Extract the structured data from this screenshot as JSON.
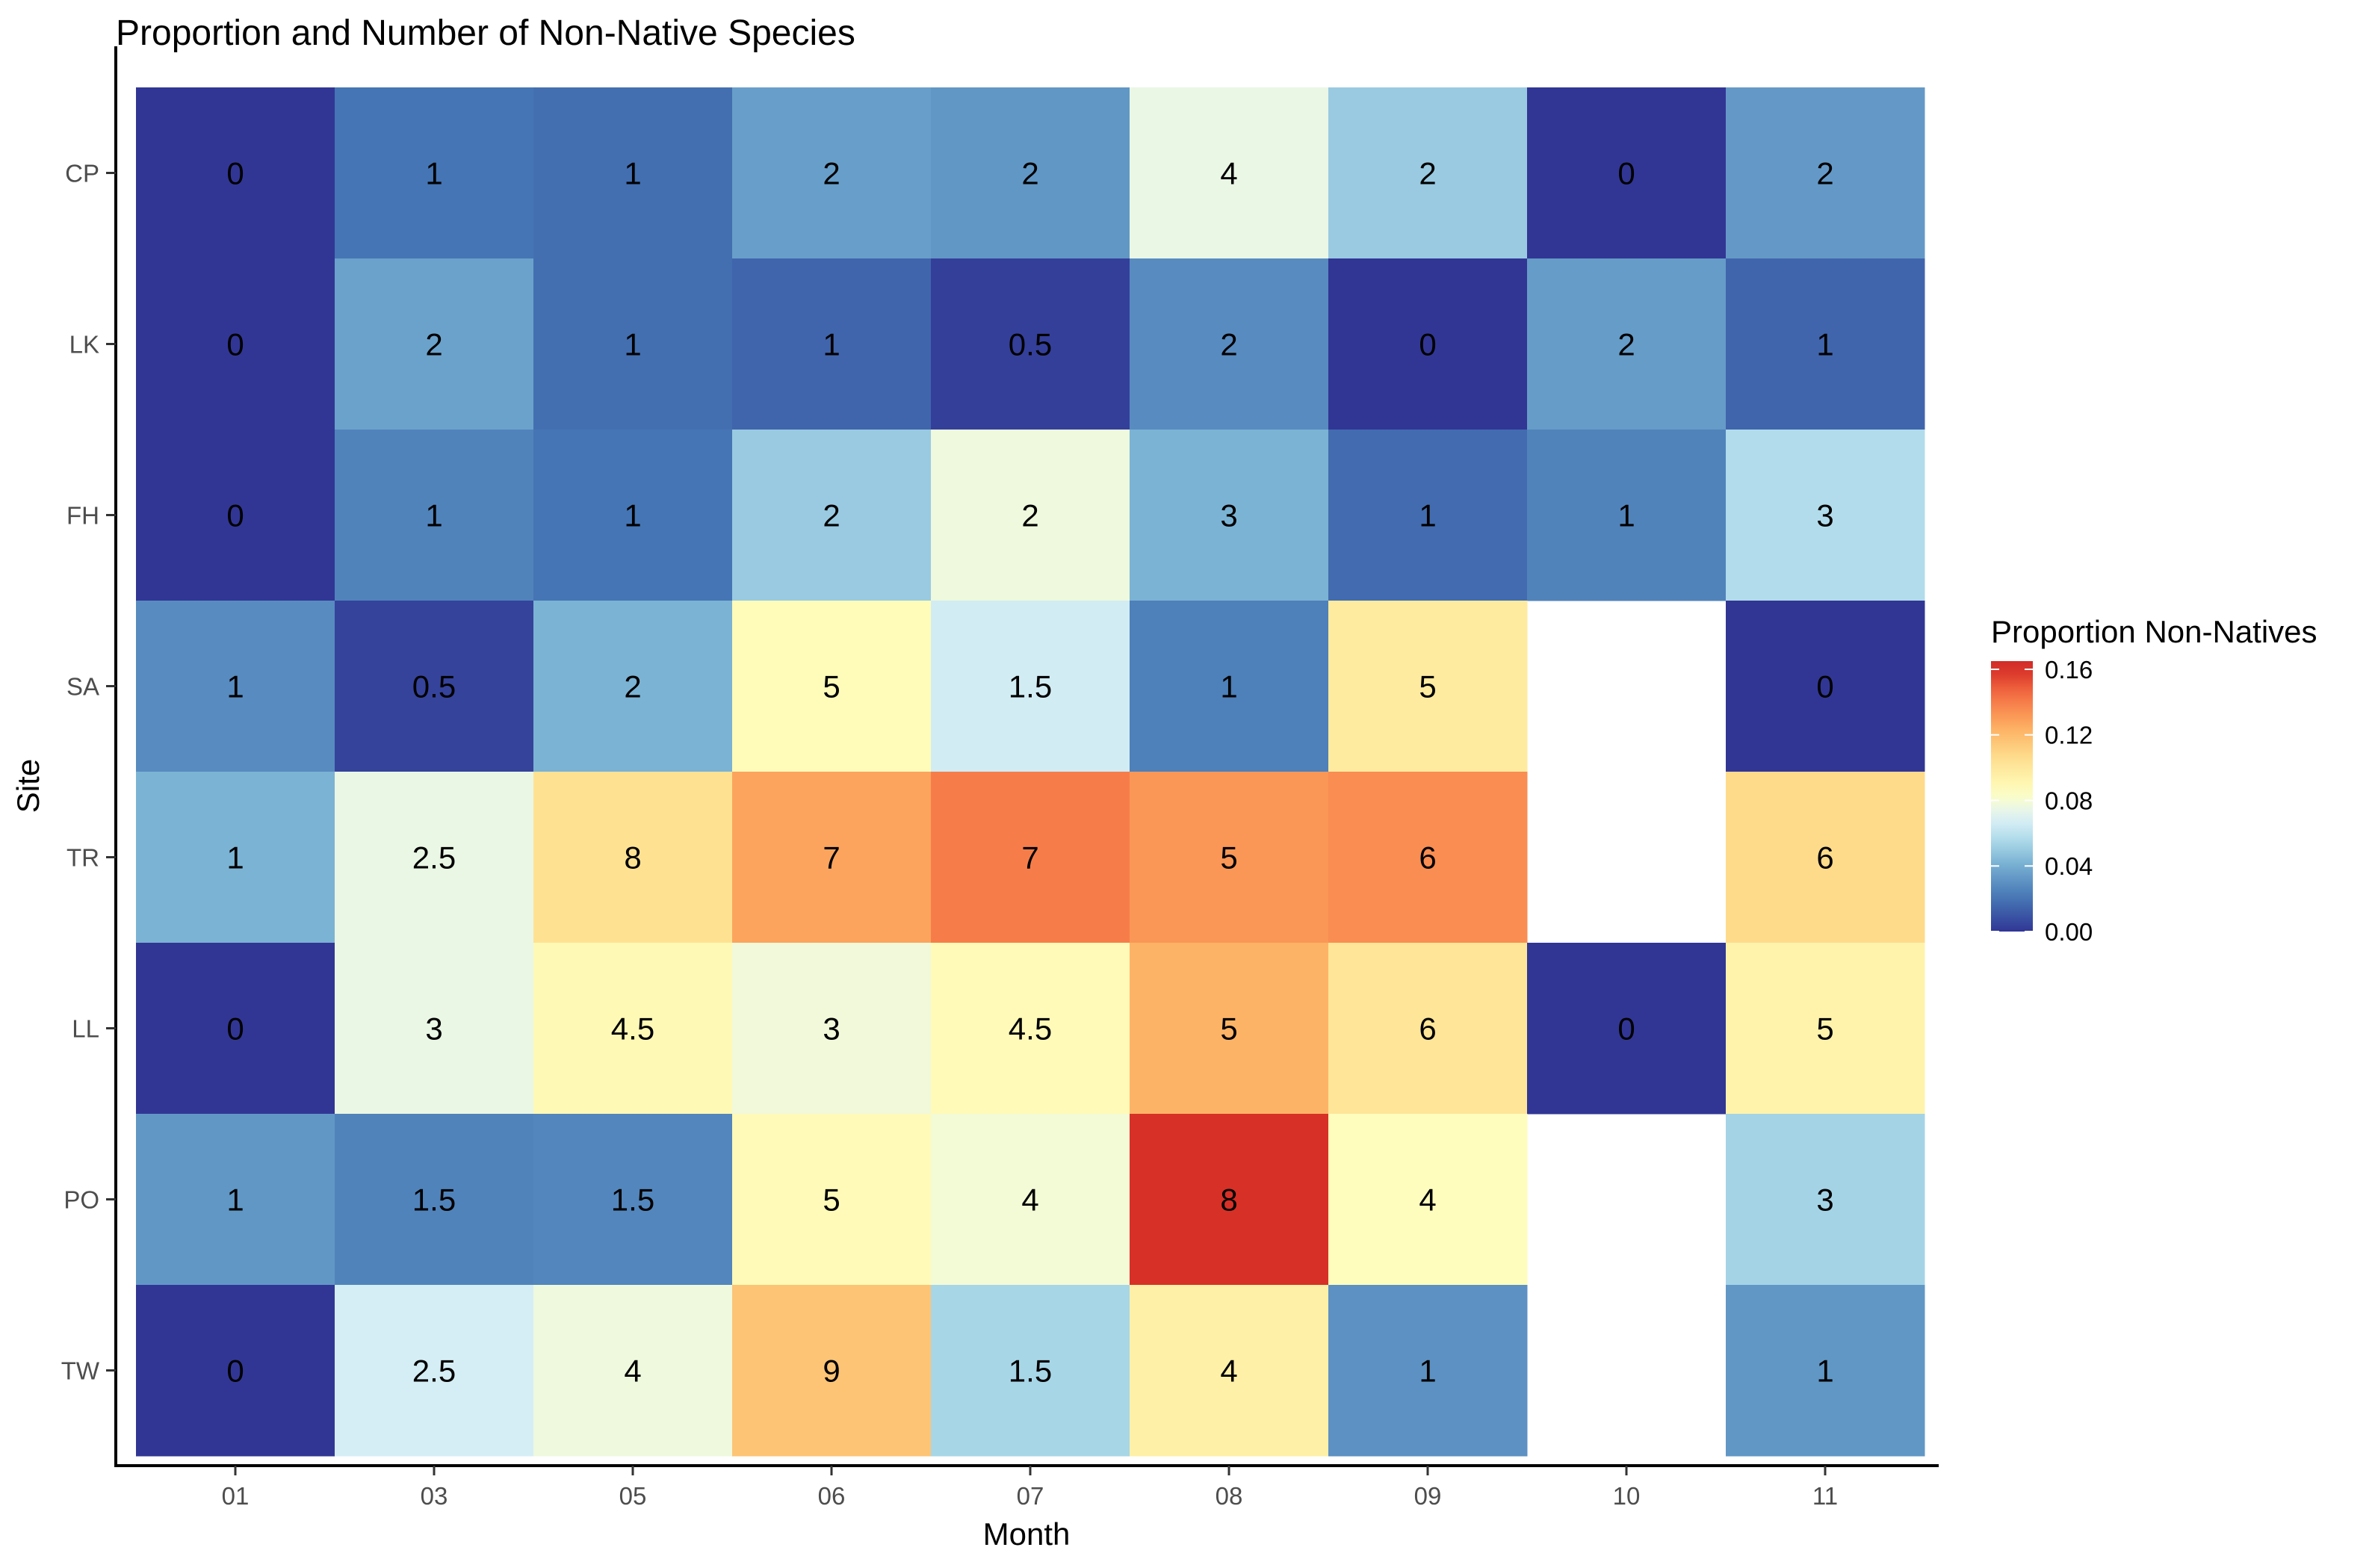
{
  "chart_data": {
    "type": "heatmap",
    "title": "Proportion and Number of Non-Native Species",
    "xlabel": "Month",
    "ylabel": "Site",
    "x_categories": [
      "01",
      "03",
      "05",
      "06",
      "07",
      "08",
      "09",
      "10",
      "11"
    ],
    "y_categories": [
      "CP",
      "LK",
      "FH",
      "SA",
      "TR",
      "LL",
      "PO",
      "TW"
    ],
    "legend": {
      "title": "Proportion Non-Natives",
      "ticks": [
        "0.16",
        "0.12",
        "0.08",
        "0.04",
        "0.00"
      ],
      "tick_values": [
        0.16,
        0.12,
        0.08,
        0.04,
        0.0
      ],
      "range": [
        0.0,
        0.165
      ],
      "placement": "right",
      "colors": [
        "#313695",
        "#4575b4",
        "#74add1",
        "#abd9e9",
        "#e0f3f8",
        "#ffffbf",
        "#fee090",
        "#fdae61",
        "#f46d43",
        "#d73027",
        "#a50026"
      ],
      "color_stops": [
        0.0,
        0.02,
        0.04,
        0.055,
        0.07,
        0.085,
        0.105,
        0.125,
        0.145,
        0.16,
        0.2
      ]
    },
    "grid": false,
    "cells": [
      {
        "site": "CP",
        "month": "01",
        "label": "0",
        "proportion": 0.0
      },
      {
        "site": "CP",
        "month": "03",
        "label": "1",
        "proportion": 0.02
      },
      {
        "site": "CP",
        "month": "05",
        "label": "1",
        "proportion": 0.018
      },
      {
        "site": "CP",
        "month": "06",
        "label": "2",
        "proportion": 0.035
      },
      {
        "site": "CP",
        "month": "07",
        "label": "2",
        "proportion": 0.032
      },
      {
        "site": "CP",
        "month": "08",
        "label": "4",
        "proportion": 0.075
      },
      {
        "site": "CP",
        "month": "09",
        "label": "2",
        "proportion": 0.05
      },
      {
        "site": "CP",
        "month": "10",
        "label": "0",
        "proportion": 0.0
      },
      {
        "site": "CP",
        "month": "11",
        "label": "2",
        "proportion": 0.033
      },
      {
        "site": "LK",
        "month": "01",
        "label": "0",
        "proportion": 0.0
      },
      {
        "site": "LK",
        "month": "03",
        "label": "2",
        "proportion": 0.036
      },
      {
        "site": "LK",
        "month": "05",
        "label": "1",
        "proportion": 0.018
      },
      {
        "site": "LK",
        "month": "06",
        "label": "1",
        "proportion": 0.015
      },
      {
        "site": "LK",
        "month": "07",
        "label": "0.5",
        "proportion": 0.003
      },
      {
        "site": "LK",
        "month": "08",
        "label": "2",
        "proportion": 0.028
      },
      {
        "site": "LK",
        "month": "09",
        "label": "0",
        "proportion": 0.0
      },
      {
        "site": "LK",
        "month": "10",
        "label": "2",
        "proportion": 0.034
      },
      {
        "site": "LK",
        "month": "11",
        "label": "1",
        "proportion": 0.015
      },
      {
        "site": "FH",
        "month": "01",
        "label": "0",
        "proportion": 0.0
      },
      {
        "site": "FH",
        "month": "03",
        "label": "1",
        "proportion": 0.025
      },
      {
        "site": "FH",
        "month": "05",
        "label": "1",
        "proportion": 0.02
      },
      {
        "site": "FH",
        "month": "06",
        "label": "2",
        "proportion": 0.05
      },
      {
        "site": "FH",
        "month": "07",
        "label": "2",
        "proportion": 0.077
      },
      {
        "site": "FH",
        "month": "08",
        "label": "3",
        "proportion": 0.042
      },
      {
        "site": "FH",
        "month": "09",
        "label": "1",
        "proportion": 0.017
      },
      {
        "site": "FH",
        "month": "10",
        "label": "1",
        "proportion": 0.025
      },
      {
        "site": "FH",
        "month": "11",
        "label": "3",
        "proportion": 0.057
      },
      {
        "site": "SA",
        "month": "01",
        "label": "1",
        "proportion": 0.028
      },
      {
        "site": "SA",
        "month": "03",
        "label": "0.5",
        "proportion": 0.004
      },
      {
        "site": "SA",
        "month": "05",
        "label": "2",
        "proportion": 0.042
      },
      {
        "site": "SA",
        "month": "06",
        "label": "5",
        "proportion": 0.087
      },
      {
        "site": "SA",
        "month": "07",
        "label": "1.5",
        "proportion": 0.066
      },
      {
        "site": "SA",
        "month": "08",
        "label": "1",
        "proportion": 0.024
      },
      {
        "site": "SA",
        "month": "09",
        "label": "5",
        "proportion": 0.098
      },
      {
        "site": "SA",
        "month": "11",
        "label": "0",
        "proportion": 0.0
      },
      {
        "site": "TR",
        "month": "01",
        "label": "1",
        "proportion": 0.042
      },
      {
        "site": "TR",
        "month": "03",
        "label": "2.5",
        "proportion": 0.075
      },
      {
        "site": "TR",
        "month": "05",
        "label": "8",
        "proportion": 0.104
      },
      {
        "site": "TR",
        "month": "06",
        "label": "7",
        "proportion": 0.128
      },
      {
        "site": "TR",
        "month": "07",
        "label": "7",
        "proportion": 0.14
      },
      {
        "site": "TR",
        "month": "08",
        "label": "5",
        "proportion": 0.132
      },
      {
        "site": "TR",
        "month": "09",
        "label": "6",
        "proportion": 0.135
      },
      {
        "site": "TR",
        "month": "11",
        "label": "6",
        "proportion": 0.107
      },
      {
        "site": "LL",
        "month": "01",
        "label": "0",
        "proportion": 0.0
      },
      {
        "site": "LL",
        "month": "03",
        "label": "3",
        "proportion": 0.075
      },
      {
        "site": "LL",
        "month": "05",
        "label": "4.5",
        "proportion": 0.089
      },
      {
        "site": "LL",
        "month": "06",
        "label": "3",
        "proportion": 0.078
      },
      {
        "site": "LL",
        "month": "07",
        "label": "4.5",
        "proportion": 0.088
      },
      {
        "site": "LL",
        "month": "08",
        "label": "5",
        "proportion": 0.123
      },
      {
        "site": "LL",
        "month": "09",
        "label": "6",
        "proportion": 0.102
      },
      {
        "site": "LL",
        "month": "10",
        "label": "0",
        "proportion": 0.0
      },
      {
        "site": "LL",
        "month": "11",
        "label": "5",
        "proportion": 0.093
      },
      {
        "site": "PO",
        "month": "01",
        "label": "1",
        "proportion": 0.032
      },
      {
        "site": "PO",
        "month": "03",
        "label": "1.5",
        "proportion": 0.025
      },
      {
        "site": "PO",
        "month": "05",
        "label": "1.5",
        "proportion": 0.026
      },
      {
        "site": "PO",
        "month": "06",
        "label": "5",
        "proportion": 0.088
      },
      {
        "site": "PO",
        "month": "07",
        "label": "4",
        "proportion": 0.079
      },
      {
        "site": "PO",
        "month": "08",
        "label": "8",
        "proportion": 0.16
      },
      {
        "site": "PO",
        "month": "09",
        "label": "4",
        "proportion": 0.086
      },
      {
        "site": "PO",
        "month": "11",
        "label": "3",
        "proportion": 0.053
      },
      {
        "site": "TW",
        "month": "01",
        "label": "0",
        "proportion": 0.0
      },
      {
        "site": "TW",
        "month": "03",
        "label": "2.5",
        "proportion": 0.067
      },
      {
        "site": "TW",
        "month": "05",
        "label": "4",
        "proportion": 0.077
      },
      {
        "site": "TW",
        "month": "06",
        "label": "9",
        "proportion": 0.116
      },
      {
        "site": "TW",
        "month": "07",
        "label": "1.5",
        "proportion": 0.054
      },
      {
        "site": "TW",
        "month": "08",
        "label": "4",
        "proportion": 0.095
      },
      {
        "site": "TW",
        "month": "09",
        "label": "1",
        "proportion": 0.03
      },
      {
        "site": "TW",
        "month": "11",
        "label": "1",
        "proportion": 0.032
      }
    ]
  }
}
